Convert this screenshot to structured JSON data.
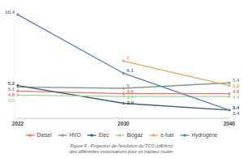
{
  "chart_data": {
    "type": "line",
    "title": "Figure 9 - Projection de l'évolution du TCO (ct€/tkm)\ndes différentes motorisations pour un tracteur routier",
    "categories": [
      "2022",
      "2030",
      "2040"
    ],
    "series": [
      {
        "name": "Diesel",
        "color": "#e8736b",
        "values": [
          4.8,
          4.6,
          4.6
        ]
      },
      {
        "name": "HVO",
        "color": "#7f9c8a",
        "values": [
          5.1,
          5.0,
          5.4
        ]
      },
      {
        "name": "Élec",
        "color": "#3d5a73",
        "values": [
          5.2,
          3.9,
          3.4
        ]
      },
      {
        "name": "Biogaz",
        "color": "#a9d18e",
        "values": [
          4.5,
          4.4,
          4.4
        ]
      },
      {
        "name": "e-fuel",
        "color": "#f4a259",
        "values": [
          null,
          7.0,
          5.2
        ]
      },
      {
        "name": "Hydrogène",
        "color": "#5b7fae",
        "values": [
          10.4,
          6.1,
          3.4
        ]
      }
    ],
    "ylim": [
      2.8,
      11
    ],
    "tick_labels": "x",
    "data_labels": true,
    "marker": "circle",
    "legend": "bottom",
    "grid": false
  }
}
